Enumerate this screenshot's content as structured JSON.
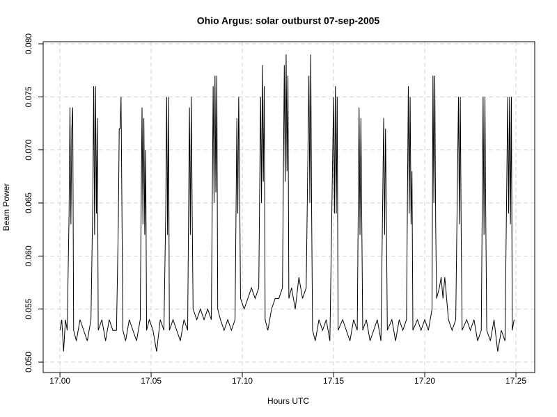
{
  "chart_data": {
    "type": "line",
    "title": "Ohio Argus: solar outburst 07-sep-2005",
    "x_label": "Hours UTC",
    "y_label": "Beam Power",
    "color": "#000000",
    "grid": true,
    "xlim": [
      16.9908,
      17.2603
    ],
    "ylim": [
      0.04902,
      0.0802
    ],
    "xticks": [
      {
        "value": 17.0,
        "label": "17.00"
      },
      17.05,
      {
        "value": 17.1,
        "label": "17.10"
      },
      17.15,
      {
        "value": 17.2,
        "label": "17.20"
      },
      17.25
    ],
    "yticks": [
      {
        "value": 0.05,
        "label": "0.050"
      },
      0.055,
      {
        "value": 0.06,
        "label": "0.060"
      },
      0.065,
      {
        "value": 0.07,
        "label": "0.070"
      },
      0.075,
      {
        "value": 0.08,
        "label": "0.080"
      }
    ],
    "x": [
      17.0,
      17.001,
      17.002,
      17.003,
      17.004,
      17.005,
      17.0055,
      17.006,
      17.0065,
      17.007,
      17.0075,
      17.009,
      17.011,
      17.013,
      17.015,
      17.017,
      17.018,
      17.0185,
      17.019,
      17.0195,
      17.02,
      17.0205,
      17.021,
      17.023,
      17.025,
      17.027,
      17.029,
      17.031,
      17.032,
      17.0325,
      17.033,
      17.0335,
      17.034,
      17.0345,
      17.036,
      17.038,
      17.04,
      17.042,
      17.044,
      17.045,
      17.0455,
      17.046,
      17.0465,
      17.047,
      17.0475,
      17.049,
      17.051,
      17.053,
      17.055,
      17.057,
      17.058,
      17.0585,
      17.059,
      17.0595,
      17.06,
      17.062,
      17.064,
      17.066,
      17.068,
      17.07,
      17.071,
      17.0715,
      17.072,
      17.0725,
      17.073,
      17.075,
      17.077,
      17.079,
      17.081,
      17.083,
      17.084,
      17.0845,
      17.085,
      17.0855,
      17.086,
      17.0865,
      17.088,
      17.09,
      17.092,
      17.094,
      17.096,
      17.097,
      17.0975,
      17.098,
      17.0985,
      17.099,
      17.101,
      17.103,
      17.105,
      17.107,
      17.109,
      17.11,
      17.1105,
      17.111,
      17.1115,
      17.112,
      17.1125,
      17.114,
      17.116,
      17.118,
      17.12,
      17.122,
      17.123,
      17.1235,
      17.124,
      17.1245,
      17.125,
      17.1255,
      17.127,
      17.129,
      17.131,
      17.133,
      17.135,
      17.1365,
      17.137,
      17.1375,
      17.138,
      17.1385,
      17.14,
      17.142,
      17.144,
      17.146,
      17.148,
      17.15,
      17.1505,
      17.151,
      17.1515,
      17.152,
      17.1525,
      17.155,
      17.157,
      17.159,
      17.161,
      17.163,
      17.164,
      17.1645,
      17.165,
      17.1655,
      17.166,
      17.168,
      17.17,
      17.172,
      17.174,
      17.176,
      17.1775,
      17.178,
      17.1785,
      17.179,
      17.1795,
      17.182,
      17.184,
      17.186,
      17.188,
      17.19,
      17.191,
      17.1915,
      17.192,
      17.1925,
      17.193,
      17.1935,
      17.196,
      17.198,
      17.2,
      17.202,
      17.204,
      17.2045,
      17.205,
      17.2055,
      17.206,
      17.2065,
      17.208,
      17.209,
      17.21,
      17.211,
      17.213,
      17.215,
      17.217,
      17.2185,
      17.219,
      17.2195,
      17.22,
      17.2205,
      17.223,
      17.225,
      17.227,
      17.229,
      17.231,
      17.232,
      17.2325,
      17.233,
      17.2335,
      17.234,
      17.236,
      17.238,
      17.24,
      17.242,
      17.244,
      17.2455,
      17.246,
      17.2465,
      17.247,
      17.2475,
      17.248,
      17.249
    ],
    "values": [
      0.053,
      0.054,
      0.051,
      0.054,
      0.053,
      0.064,
      0.074,
      0.063,
      0.072,
      0.074,
      0.053,
      0.052,
      0.054,
      0.053,
      0.052,
      0.054,
      0.065,
      0.076,
      0.062,
      0.076,
      0.064,
      0.073,
      0.053,
      0.054,
      0.052,
      0.054,
      0.053,
      0.053,
      0.063,
      0.072,
      0.072,
      0.075,
      0.064,
      0.053,
      0.052,
      0.054,
      0.053,
      0.052,
      0.054,
      0.074,
      0.063,
      0.073,
      0.062,
      0.07,
      0.053,
      0.054,
      0.053,
      0.051,
      0.054,
      0.053,
      0.064,
      0.075,
      0.062,
      0.075,
      0.053,
      0.054,
      0.053,
      0.052,
      0.054,
      0.053,
      0.074,
      0.062,
      0.075,
      0.064,
      0.055,
      0.054,
      0.055,
      0.054,
      0.055,
      0.054,
      0.076,
      0.065,
      0.077,
      0.066,
      0.077,
      0.055,
      0.054,
      0.053,
      0.054,
      0.053,
      0.054,
      0.073,
      0.064,
      0.075,
      0.067,
      0.056,
      0.055,
      0.056,
      0.057,
      0.056,
      0.057,
      0.075,
      0.065,
      0.078,
      0.067,
      0.076,
      0.054,
      0.053,
      0.055,
      0.056,
      0.056,
      0.057,
      0.078,
      0.067,
      0.079,
      0.068,
      0.077,
      0.056,
      0.057,
      0.055,
      0.058,
      0.056,
      0.057,
      0.077,
      0.065,
      0.079,
      0.064,
      0.053,
      0.052,
      0.054,
      0.053,
      0.054,
      0.052,
      0.075,
      0.064,
      0.076,
      0.064,
      0.075,
      0.053,
      0.054,
      0.053,
      0.052,
      0.054,
      0.053,
      0.074,
      0.062,
      0.073,
      0.063,
      0.053,
      0.054,
      0.052,
      0.053,
      0.054,
      0.052,
      0.073,
      0.062,
      0.072,
      0.063,
      0.053,
      0.054,
      0.052,
      0.054,
      0.053,
      0.054,
      0.076,
      0.064,
      0.075,
      0.063,
      0.068,
      0.053,
      0.054,
      0.053,
      0.054,
      0.053,
      0.055,
      0.077,
      0.065,
      0.077,
      0.063,
      0.056,
      0.057,
      0.058,
      0.056,
      0.058,
      0.054,
      0.053,
      0.054,
      0.075,
      0.063,
      0.075,
      0.062,
      0.053,
      0.054,
      0.053,
      0.054,
      0.052,
      0.053,
      0.075,
      0.062,
      0.075,
      0.063,
      0.053,
      0.052,
      0.054,
      0.051,
      0.053,
      0.052,
      0.075,
      0.064,
      0.075,
      0.063,
      0.075,
      0.053,
      0.054
    ]
  }
}
